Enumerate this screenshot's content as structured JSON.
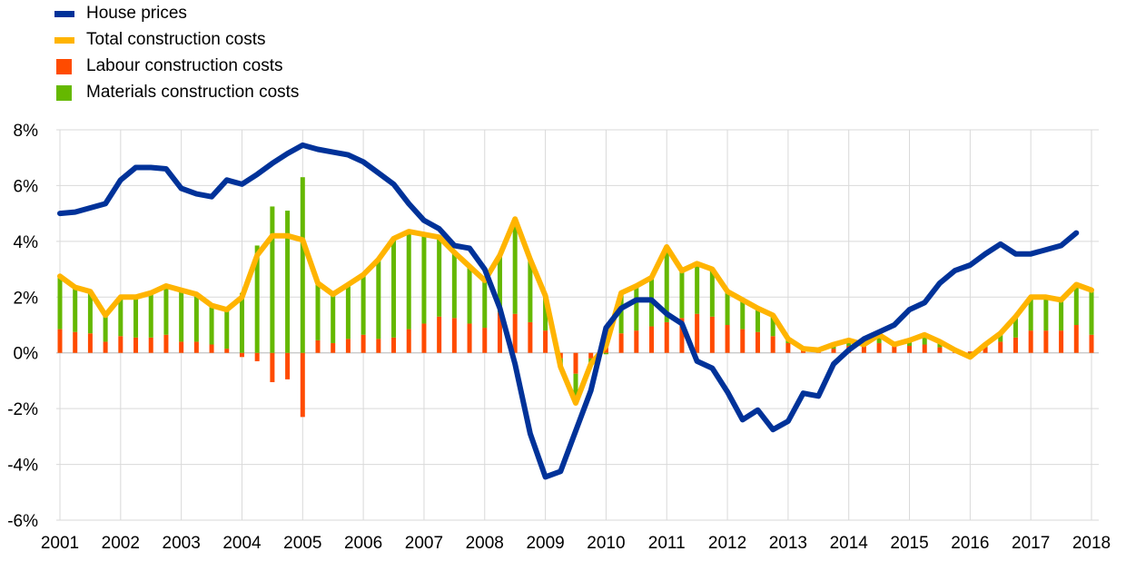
{
  "colors": {
    "house_prices": "#003299",
    "total_costs": "#FFB400",
    "labour": "#FF4B00",
    "materials": "#65B800",
    "grid": "#d9d9d9"
  },
  "chart_data": {
    "type": "bar",
    "title": "",
    "xlabel": "",
    "ylabel": "",
    "ylim": [
      -6,
      8
    ],
    "yticks": [
      "8%",
      "6%",
      "4%",
      "2%",
      "0%",
      "-2%",
      "-4%",
      "-6%"
    ],
    "xticks": [
      "2001",
      "2002",
      "2003",
      "2004",
      "2005",
      "2006",
      "2007",
      "2008",
      "2009",
      "2010",
      "2011",
      "2012",
      "2013",
      "2014",
      "2015",
      "2016",
      "2017",
      "2018"
    ],
    "legend": [
      {
        "name": "House prices",
        "kind": "line",
        "color": "#003299"
      },
      {
        "name": "Total construction costs",
        "kind": "line",
        "color": "#FFB400"
      },
      {
        "name": "Labour construction costs",
        "kind": "bar",
        "color": "#FF4B00"
      },
      {
        "name": "Materials construction costs",
        "kind": "bar",
        "color": "#65B800"
      }
    ],
    "legend_position": "top-left",
    "grid": true,
    "x": [
      "2001Q1",
      "2001Q2",
      "2001Q3",
      "2001Q4",
      "2002Q1",
      "2002Q2",
      "2002Q3",
      "2002Q4",
      "2003Q1",
      "2003Q2",
      "2003Q3",
      "2003Q4",
      "2004Q1",
      "2004Q2",
      "2004Q3",
      "2004Q4",
      "2005Q1",
      "2005Q2",
      "2005Q3",
      "2005Q4",
      "2006Q1",
      "2006Q2",
      "2006Q3",
      "2006Q4",
      "2007Q1",
      "2007Q2",
      "2007Q3",
      "2007Q4",
      "2008Q1",
      "2008Q2",
      "2008Q3",
      "2008Q4",
      "2009Q1",
      "2009Q2",
      "2009Q3",
      "2009Q4",
      "2010Q1",
      "2010Q2",
      "2010Q3",
      "2010Q4",
      "2011Q1",
      "2011Q2",
      "2011Q3",
      "2011Q4",
      "2012Q1",
      "2012Q2",
      "2012Q3",
      "2012Q4",
      "2013Q1",
      "2013Q2",
      "2013Q3",
      "2013Q4",
      "2014Q1",
      "2014Q2",
      "2014Q3",
      "2014Q4",
      "2015Q1",
      "2015Q2",
      "2015Q3",
      "2015Q4",
      "2016Q1",
      "2016Q2",
      "2016Q3",
      "2016Q4",
      "2017Q1",
      "2017Q2",
      "2017Q3",
      "2017Q4",
      "2018Q1"
    ],
    "series": [
      {
        "name": "House prices",
        "kind": "line",
        "values": [
          5.0,
          5.05,
          5.2,
          5.35,
          6.2,
          6.65,
          6.65,
          6.6,
          5.9,
          5.7,
          5.6,
          6.2,
          6.05,
          6.4,
          6.8,
          7.15,
          7.45,
          7.3,
          7.2,
          7.1,
          6.85,
          6.45,
          6.05,
          5.35,
          4.75,
          4.45,
          3.85,
          3.75,
          3.0,
          1.6,
          -0.4,
          -2.9,
          -4.45,
          -4.25,
          -2.8,
          -1.35,
          0.9,
          1.6,
          1.9,
          1.9,
          1.4,
          1.05,
          -0.3,
          -0.55,
          -1.4,
          -2.4,
          -2.05,
          -2.75,
          -2.45,
          -1.45,
          -1.55,
          -0.4,
          0.1,
          0.5,
          0.75,
          1.0,
          1.55,
          1.8,
          2.5,
          2.95,
          3.15,
          3.55,
          3.9,
          3.55,
          3.55,
          3.7,
          3.85,
          4.3,
          null
        ]
      },
      {
        "name": "Total construction costs",
        "kind": "line",
        "values": [
          2.75,
          2.35,
          2.2,
          1.35,
          2.0,
          2.0,
          2.15,
          2.4,
          2.25,
          2.1,
          1.7,
          1.55,
          2.0,
          3.5,
          4.2,
          4.2,
          4.05,
          2.5,
          2.1,
          2.45,
          2.8,
          3.35,
          4.1,
          4.35,
          4.25,
          4.15,
          3.6,
          3.1,
          2.6,
          3.5,
          4.8,
          3.35,
          2.05,
          -0.5,
          -1.8,
          -0.4,
          0.25,
          2.15,
          2.4,
          2.7,
          3.8,
          2.95,
          3.2,
          3.0,
          2.2,
          1.9,
          1.6,
          1.35,
          0.5,
          0.15,
          0.1,
          0.3,
          0.45,
          0.3,
          0.65,
          0.3,
          0.45,
          0.65,
          0.4,
          0.1,
          -0.15,
          0.3,
          0.7,
          1.3,
          2.0,
          2.0,
          1.9,
          2.45,
          2.25
        ]
      },
      {
        "name": "Labour construction costs",
        "kind": "bar",
        "values": [
          0.85,
          0.75,
          0.7,
          0.4,
          0.6,
          0.55,
          0.55,
          0.65,
          0.4,
          0.4,
          0.3,
          0.15,
          -0.15,
          -0.3,
          -1.05,
          -0.95,
          -2.3,
          0.45,
          0.35,
          0.5,
          0.65,
          0.5,
          0.55,
          0.85,
          1.05,
          1.3,
          1.25,
          1.05,
          0.9,
          1.45,
          1.4,
          1.1,
          0.8,
          -0.2,
          -0.75,
          -0.2,
          0.3,
          0.7,
          0.8,
          0.95,
          1.1,
          1.25,
          1.4,
          1.3,
          1.0,
          0.85,
          0.75,
          0.6,
          0.35,
          0.15,
          0.1,
          0.15,
          0.25,
          0.25,
          0.35,
          0.3,
          0.25,
          0.3,
          0.2,
          0.1,
          0.05,
          0.2,
          0.4,
          0.55,
          0.8,
          0.8,
          0.8,
          1.0,
          0.65
        ]
      },
      {
        "name": "Materials construction costs",
        "kind": "bar",
        "values": [
          1.9,
          1.6,
          1.5,
          0.95,
          1.4,
          1.45,
          1.6,
          1.75,
          1.85,
          1.7,
          1.4,
          1.4,
          2.15,
          3.85,
          5.25,
          5.1,
          6.3,
          2.05,
          1.75,
          1.95,
          2.15,
          2.85,
          3.55,
          3.5,
          3.2,
          2.85,
          2.35,
          2.05,
          1.7,
          2.05,
          3.4,
          2.25,
          1.25,
          -0.3,
          -1.05,
          -0.2,
          -0.05,
          1.45,
          1.6,
          1.75,
          2.7,
          1.7,
          1.8,
          1.7,
          1.2,
          1.05,
          0.85,
          0.75,
          0.15,
          0.0,
          0.0,
          0.15,
          0.2,
          0.05,
          0.3,
          0.0,
          0.2,
          0.35,
          0.2,
          0.0,
          -0.2,
          0.1,
          0.3,
          0.75,
          1.2,
          1.2,
          1.1,
          1.45,
          1.6
        ]
      }
    ]
  }
}
